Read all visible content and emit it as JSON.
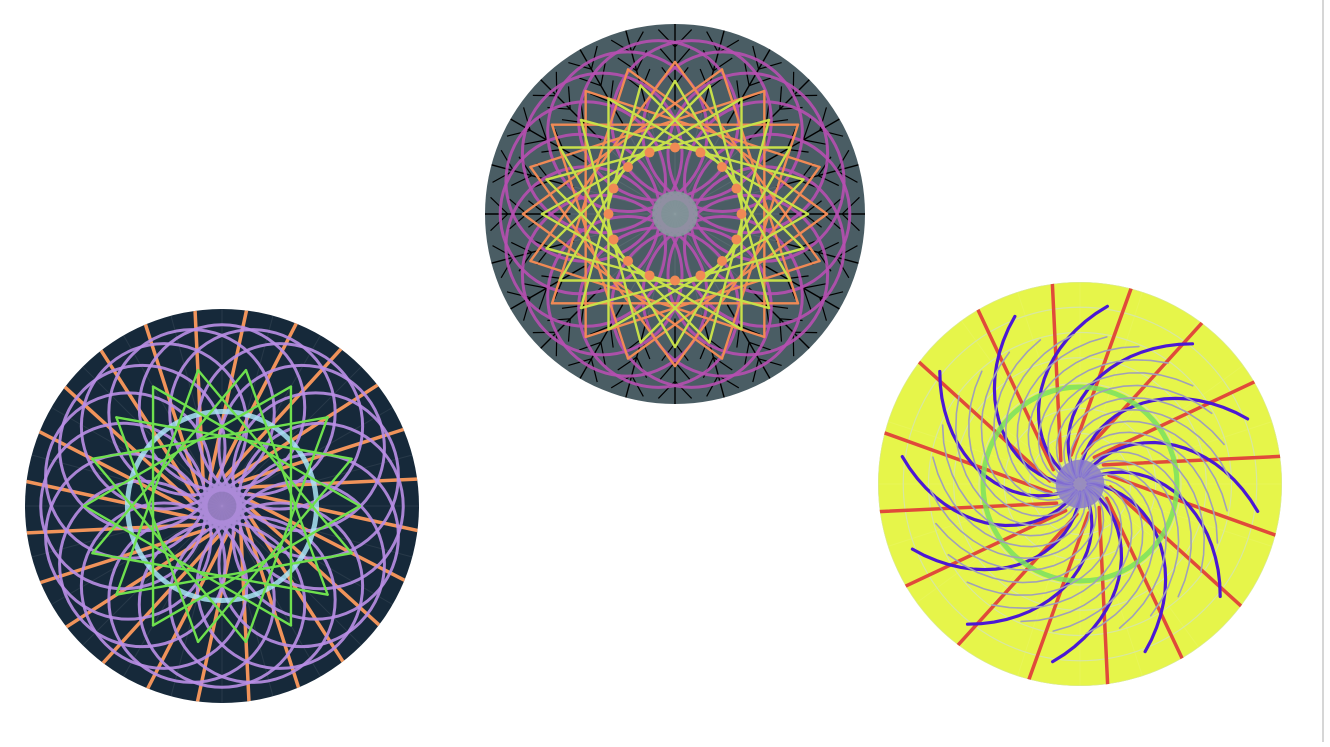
{
  "mandalas": [
    {
      "id": "mandala-top",
      "background": "#4a5d64",
      "sectors": 24,
      "layers": [
        {
          "kind": "spokes-tree",
          "color": "#000000",
          "count": 24
        },
        {
          "kind": "loops",
          "color": "#b64fb0",
          "count": 18
        },
        {
          "kind": "star",
          "color": "#f08a55",
          "count": 20
        },
        {
          "kind": "star",
          "color": "#c7e04a",
          "count": 24
        },
        {
          "kind": "dots",
          "color": "#f08a55",
          "count": 16
        },
        {
          "kind": "hub",
          "color": "#8a9aa0"
        }
      ]
    },
    {
      "id": "mandala-left",
      "background": "#16293a",
      "sectors": 24,
      "layers": [
        {
          "kind": "rays",
          "color": "#f0935a",
          "count": 24
        },
        {
          "kind": "loops",
          "color": "#b98ee6",
          "count": 20
        },
        {
          "kind": "ring",
          "color": "#a9e4f4"
        },
        {
          "kind": "star",
          "color": "#6ee04e",
          "count": 18
        },
        {
          "kind": "hub",
          "color": "#a98ad6"
        }
      ]
    },
    {
      "id": "mandala-right",
      "background": "#e6f54a",
      "sectors": 20,
      "layers": [
        {
          "kind": "rings",
          "color": "#d7e7a0"
        },
        {
          "kind": "rays",
          "color": "#e04a3a",
          "count": 16
        },
        {
          "kind": "swirl",
          "color": "#4b18d4",
          "count": 12
        },
        {
          "kind": "ring",
          "color": "#78e060"
        },
        {
          "kind": "swirl",
          "color": "#a0a0b8",
          "count": 28
        },
        {
          "kind": "hub",
          "color": "#8a7ad0"
        }
      ]
    }
  ]
}
